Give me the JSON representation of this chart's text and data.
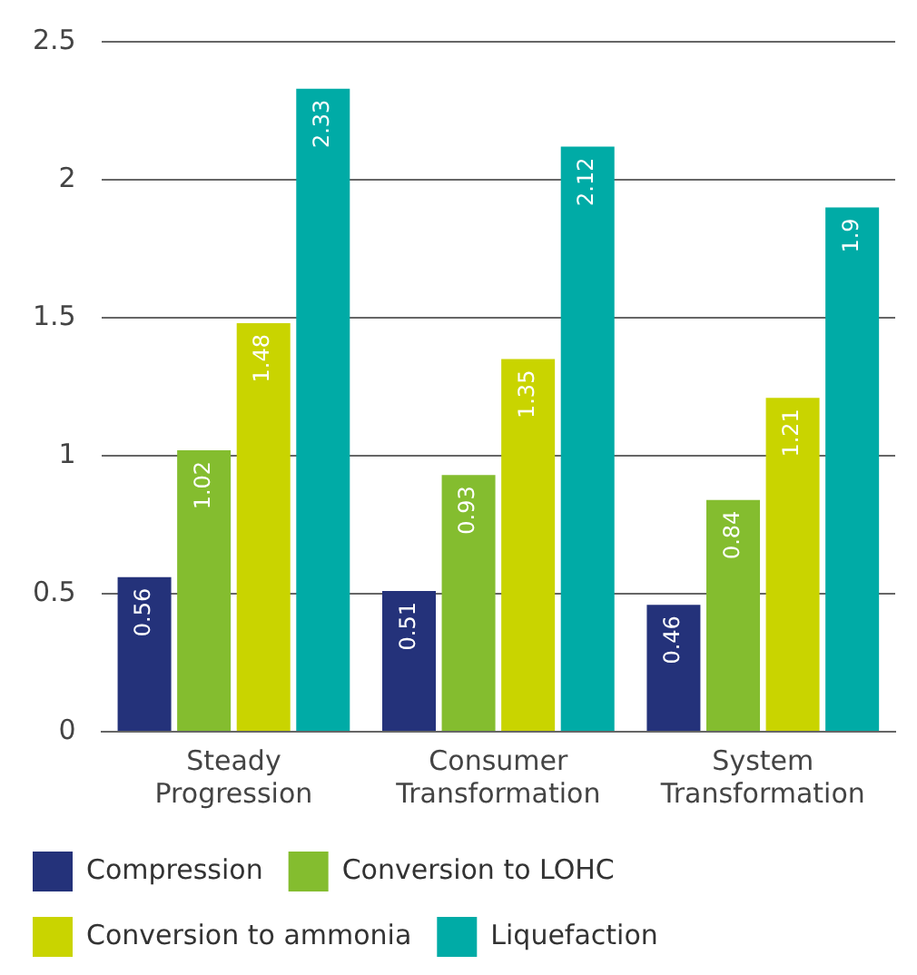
{
  "chart_data": {
    "type": "bar",
    "categories": [
      "Steady Progression",
      "Consumer Transformation",
      "System Transformation"
    ],
    "series": [
      {
        "name": "Compression",
        "color": "#24327a",
        "values": [
          0.56,
          0.51,
          0.46
        ]
      },
      {
        "name": "Conversion to LOHC",
        "color": "#84bd2f",
        "values": [
          1.02,
          0.93,
          0.84
        ]
      },
      {
        "name": "Conversion to ammonia",
        "color": "#c9d400",
        "values": [
          1.48,
          1.35,
          1.21
        ]
      },
      {
        "name": "Liquefaction",
        "color": "#00aba6",
        "values": [
          2.33,
          2.12,
          1.9
        ]
      }
    ],
    "ylim": [
      0,
      2.5
    ],
    "yticks": [
      0,
      0.5,
      1,
      1.5,
      2,
      2.5
    ],
    "grid": "y",
    "legend": "bottom",
    "data_labels": true
  }
}
